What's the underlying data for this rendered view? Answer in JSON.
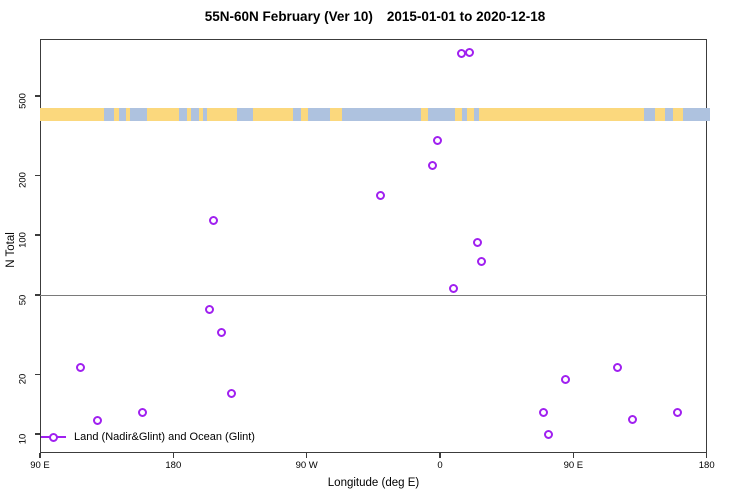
{
  "title": {
    "left": "55N-60N February (Ver 10)",
    "right": "2015-01-01 to 2020-12-18"
  },
  "legend": {
    "label": "Land (Nadir&Glint) and Ocean (Glint)"
  },
  "colors": {
    "marker_purple": "#A020F0",
    "land_yellow": "#FBD87D",
    "ocean_blue": "#AEC2DF",
    "reference_line_gray": "#7a7a7a",
    "axis_gray": "#3c3c3c"
  },
  "map_strip": {
    "description": "land-ocean-strip",
    "segments": [
      [
        90,
        133,
        "land"
      ],
      [
        133,
        140,
        "ocean"
      ],
      [
        140,
        143,
        "land"
      ],
      [
        143,
        148,
        "ocean"
      ],
      [
        148,
        151,
        "land"
      ],
      [
        151,
        162,
        "ocean"
      ],
      [
        162,
        184,
        "land"
      ],
      [
        184,
        189,
        "ocean"
      ],
      [
        189,
        192,
        "land"
      ],
      [
        192,
        197,
        "ocean"
      ],
      [
        197,
        200,
        "land"
      ],
      [
        200,
        203,
        "ocean"
      ],
      [
        203,
        223,
        "land"
      ],
      [
        223,
        234,
        "ocean"
      ],
      [
        234,
        261,
        "land"
      ],
      [
        261,
        266,
        "ocean"
      ],
      [
        266,
        271,
        "land"
      ],
      [
        271,
        286,
        "ocean"
      ],
      [
        286,
        294,
        "land"
      ],
      [
        294,
        347,
        "ocean"
      ],
      [
        347,
        352,
        "land"
      ],
      [
        352,
        370,
        "ocean"
      ],
      [
        370,
        375,
        "land"
      ],
      [
        375,
        378,
        "ocean"
      ],
      [
        378,
        383,
        "land"
      ],
      [
        383,
        386,
        "ocean"
      ],
      [
        386,
        498,
        "land"
      ],
      [
        498,
        505,
        "ocean"
      ],
      [
        505,
        512,
        "land"
      ],
      [
        512,
        517,
        "ocean"
      ],
      [
        517,
        524,
        "land"
      ],
      [
        524,
        542,
        "ocean"
      ]
    ]
  },
  "chart_data": {
    "type": "scatter",
    "title": "55N-60N February (Ver 10)  2015-01-01 to 2020-12-18",
    "xlabel": "Longitude (deg E)",
    "ylabel": "N Total",
    "x_axis": {
      "range_deg_east": [
        90,
        540
      ],
      "tick_positions_deg": [
        90,
        180,
        270,
        360,
        450,
        540
      ],
      "tick_labels": [
        "90 E",
        "180",
        "90 W",
        "0",
        "90 E",
        "180"
      ]
    },
    "y_axis": {
      "scale": "log",
      "ticks": [
        10,
        20,
        50,
        100,
        200,
        500
      ],
      "ylim_approx": [
        8,
        950
      ]
    },
    "reference_line_y": 50,
    "grid": false,
    "legend_position": "bottom-left-inside",
    "series": [
      {
        "name": "Land (Nadir&Glint) and Ocean (Glint)",
        "marker": "open-circle",
        "color": "#A020F0",
        "points": [
          {
            "x_deg": 374.5,
            "n": 815
          },
          {
            "x_deg": 380.0,
            "n": 825
          },
          {
            "x_deg": 358.0,
            "n": 300
          },
          {
            "x_deg": 355.0,
            "n": 225
          },
          {
            "x_deg": 320.0,
            "n": 159
          },
          {
            "x_deg": 207.0,
            "n": 118
          },
          {
            "x_deg": 385.0,
            "n": 91.5
          },
          {
            "x_deg": 388.0,
            "n": 73.5
          },
          {
            "x_deg": 369.0,
            "n": 54
          },
          {
            "x_deg": 204.5,
            "n": 42.5
          },
          {
            "x_deg": 212.5,
            "n": 32.5
          },
          {
            "x_deg": 117.0,
            "n": 21.5
          },
          {
            "x_deg": 219.5,
            "n": 16
          },
          {
            "x_deg": 159.0,
            "n": 12.8
          },
          {
            "x_deg": 128.5,
            "n": 11.7
          },
          {
            "x_deg": 430.0,
            "n": 12.8
          },
          {
            "x_deg": 433.5,
            "n": 10
          },
          {
            "x_deg": 444.5,
            "n": 18.8
          },
          {
            "x_deg": 480.0,
            "n": 21.5
          },
          {
            "x_deg": 490.0,
            "n": 11.9
          },
          {
            "x_deg": 520.5,
            "n": 12.8
          }
        ]
      }
    ]
  }
}
